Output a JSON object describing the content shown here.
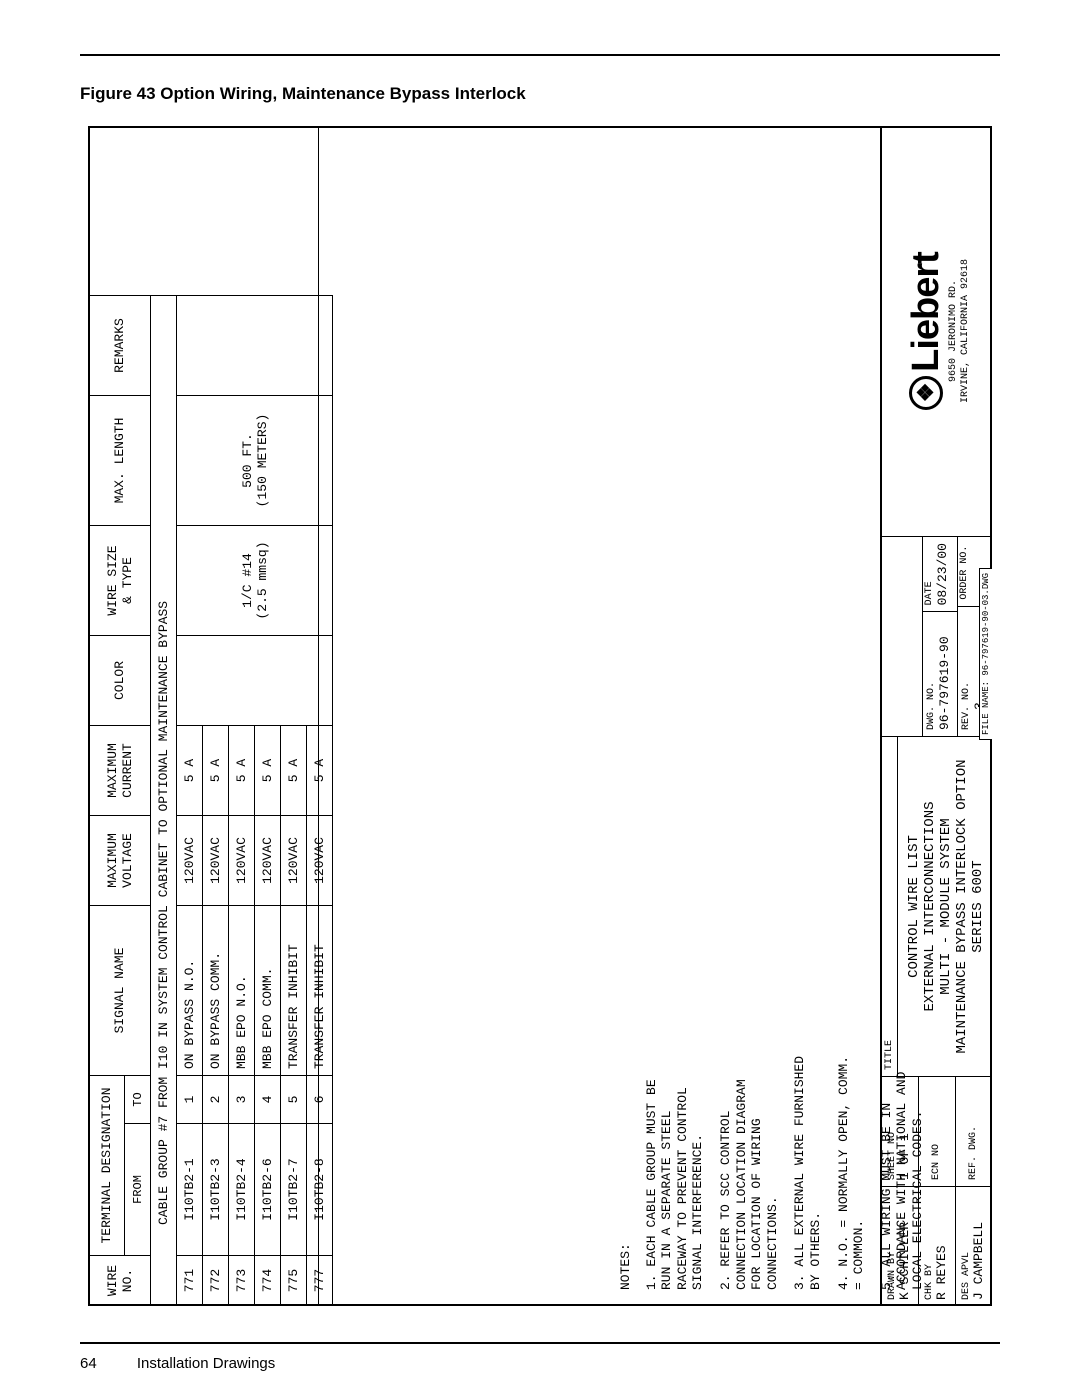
{
  "figure_title": "Figure 43  Option Wiring, Maintenance Bypass Interlock",
  "footer": {
    "page": "64",
    "section": "Installation Drawings"
  },
  "table": {
    "headers": {
      "wire_no": "WIRE\nNO.",
      "term_des": "TERMINAL DESIGNATION",
      "from": "FROM",
      "to": "TO",
      "signal": "SIGNAL NAME",
      "max_v": "MAXIMUM\nVOLTAGE",
      "max_c": "MAXIMUM\nCURRENT",
      "color": "COLOR",
      "size": "WIRE SIZE\n& TYPE",
      "len": "MAX. LENGTH",
      "remarks": "REMARKS"
    },
    "group_row": "CABLE GROUP #7 FROM I10 IN SYSTEM CONTROL CABINET TO OPTIONAL MAINTENANCE BYPASS",
    "size_val": "1/C #14\n(2.5 mmsq)",
    "len_val": "500 FT.\n(150 METERS)",
    "rows": [
      {
        "no": "771",
        "from": "I10TB2-1",
        "to": "1",
        "sig": "ON BYPASS N.O.",
        "v": "120VAC",
        "c": "5 A"
      },
      {
        "no": "772",
        "from": "I10TB2-3",
        "to": "2",
        "sig": "ON BYPASS COMM.",
        "v": "120VAC",
        "c": "5 A"
      },
      {
        "no": "773",
        "from": "I10TB2-4",
        "to": "3",
        "sig": "MBB EPO N.O.",
        "v": "120VAC",
        "c": "5 A"
      },
      {
        "no": "774",
        "from": "I10TB2-6",
        "to": "4",
        "sig": "MBB EPO COMM.",
        "v": "120VAC",
        "c": "5 A"
      },
      {
        "no": "775",
        "from": "I10TB2-7",
        "to": "5",
        "sig": "TRANSFER INHIBIT",
        "v": "120VAC",
        "c": "5 A"
      },
      {
        "no": "777",
        "from": "I10TB2-8",
        "to": "6",
        "sig": "TRANSFER INHIBIT",
        "v": "120VAC",
        "c": "5 A"
      }
    ]
  },
  "notes": {
    "title": "NOTES:",
    "items": [
      "1. EACH CABLE GROUP MUST BE RUN IN A SEPARATE STEEL RACEWAY TO PREVENT CONTROL SIGNAL INTERFERENCE.",
      "2. REFER TO SCC CONTROL CONNECTION LOCATION DIAGRAM FOR LOCATION OF WIRING CONNECTIONS.",
      "3. ALL EXTERNAL WIRE FURNISHED BY OTHERS.",
      "4. N.O. = NORMALLY OPEN, COMM. = COMMON.",
      "5. ALL WIRING MUST BE IN ACCORDANCE WITH NATIONAL AND LOCAL ELECTRICAL CODES."
    ]
  },
  "title_block": {
    "drawn_by_l": "DRAWN BY",
    "drawn_by": "K SCHILLER",
    "chk_by_l": "CHK BY",
    "chk_by": "R REYES",
    "des_apvl_l": "DES APVL",
    "des_apvl": "J CAMPBELL",
    "sheet_l": "SHEET NO",
    "sheet": "1 OF 1",
    "ecn_l": "ECN NO",
    "ecn": "",
    "ref_l": "REF. DWG.",
    "ref": "",
    "title_l": "TITLE",
    "title1": "CONTROL WIRE LIST",
    "title2": "EXTERNAL INTERCONNECTIONS",
    "title3": "MULTI - MODULE SYSTEM",
    "title4": "MAINTENANCE BYPASS INTERLOCK OPTION",
    "title5": "SERIES 600T",
    "dwg_l": "DWG. NO.",
    "dwg": "96-797619-90",
    "date_l": "DATE",
    "date": "08/23/00",
    "rev_l": "REV. NO.",
    "rev": "3",
    "order_l": "ORDER NO.",
    "order": "",
    "file": "FILE NAME: 96-797619-90-03.DWG",
    "logo_name": "Liebert",
    "logo_addr1": "9650 JERONIMO RD.",
    "logo_addr2": "IRVINE, CALIFORNIA 92618"
  }
}
